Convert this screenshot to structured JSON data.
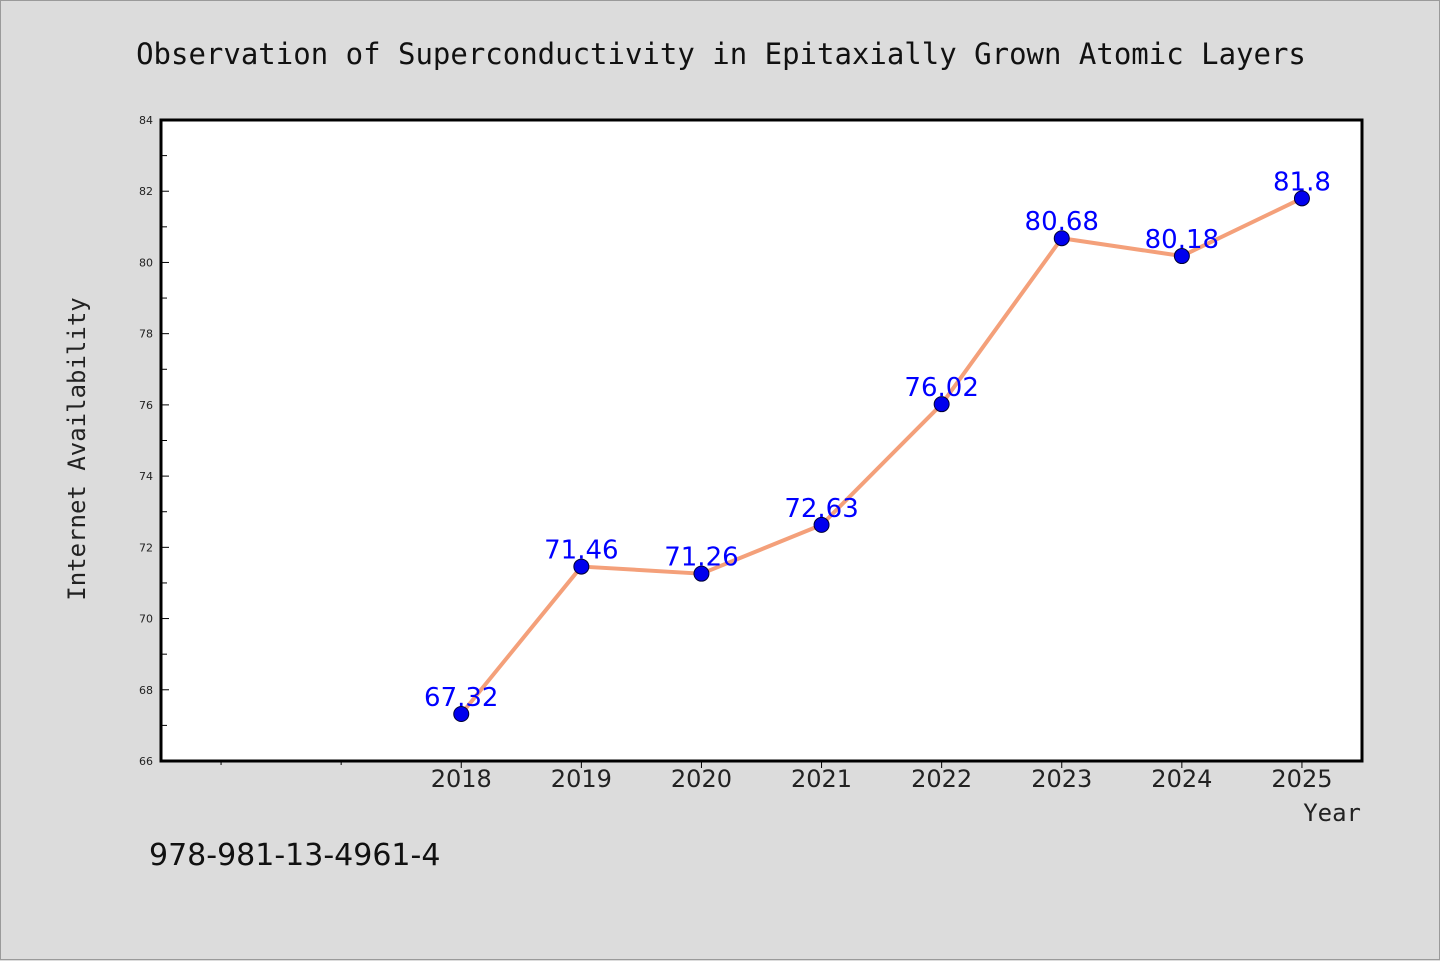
{
  "chart_data": {
    "type": "line",
    "title": "Observation of Superconductivity in Epitaxially Grown Atomic Layers",
    "xlabel": "Year",
    "ylabel": "Internet Availability",
    "categories": [
      "2018",
      "2019",
      "2020",
      "2021",
      "2022",
      "2023",
      "2024",
      "2025"
    ],
    "x_slot_count": 10,
    "x_first_category_slot": 2,
    "series": [
      {
        "values": [
          67.32,
          71.46,
          71.26,
          72.63,
          76.02,
          80.68,
          80.18,
          81.8
        ],
        "labels": [
          "67.32",
          "71.46",
          "71.26",
          "72.63",
          "76.02",
          "80.68",
          "80.18",
          "81.8"
        ]
      }
    ],
    "ylim": [
      66,
      84
    ],
    "yticks": [
      "66",
      "68",
      "70",
      "72",
      "74",
      "76",
      "78",
      "80",
      "82",
      "84"
    ],
    "ytick_step": 2,
    "grid": false,
    "legend": "none",
    "colors": {
      "line": "#f4a07a",
      "marker": "#0000ee",
      "marker_edge": "#000033",
      "data_label": "#0000ff",
      "plot_bg": "#ffffff",
      "page_bg": "#dcdcdc",
      "axes": "#000000"
    }
  },
  "footnote": "978-981-13-4961-4"
}
